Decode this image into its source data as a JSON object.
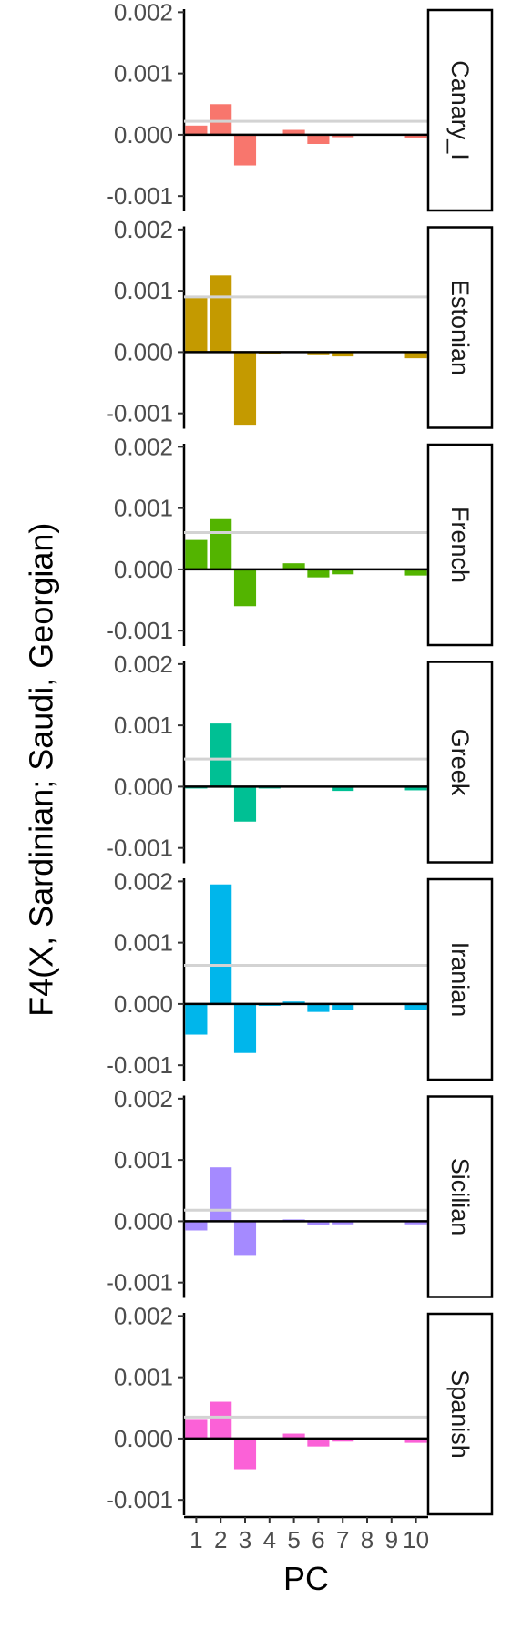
{
  "chart_data": {
    "type": "bar",
    "layout": "faceted, one panel per population, stacked vertically",
    "ylabel": "F4(X, Sardinian; Saudi, Georgian)",
    "xlabel": "PC",
    "x": [
      1,
      2,
      3,
      4,
      5,
      6,
      7,
      8,
      9,
      10
    ],
    "x_tick_labels": [
      "1",
      "2",
      "3",
      "4",
      "5",
      "6",
      "7",
      "8",
      "9",
      "10"
    ],
    "ylim": [
      -0.00125,
      0.00205
    ],
    "y_ticks": [
      -0.001,
      0.0,
      0.001,
      0.002
    ],
    "y_tick_labels": [
      "-0.001",
      "0.000",
      "0.001",
      "0.002"
    ],
    "grid": false,
    "zero_line_color": "#000000",
    "reference_line_color": "#d3d3d3",
    "panels": [
      {
        "name": "Canary_I",
        "color": "#F8766D",
        "reference_line": 0.00022,
        "values": [
          0.00015,
          0.0005,
          -0.0005,
          0.0,
          8e-05,
          -0.00015,
          -4e-05,
          0.0,
          0.0,
          -6e-05
        ]
      },
      {
        "name": "Estonian",
        "color": "#C49A00",
        "reference_line": 0.0009,
        "values": [
          0.0009,
          0.00125,
          -0.0012,
          -3e-05,
          0.0,
          -5e-05,
          -7e-05,
          0.0,
          0.0,
          -0.0001
        ]
      },
      {
        "name": "French",
        "color": "#53B400",
        "reference_line": 0.0006,
        "values": [
          0.00048,
          0.00082,
          -0.0006,
          0.0,
          0.0001,
          -0.00013,
          -8e-05,
          0.0,
          0.0,
          -0.0001
        ]
      },
      {
        "name": "Greek",
        "color": "#00C094",
        "reference_line": 0.00045,
        "values": [
          -3e-05,
          0.00103,
          -0.00057,
          -3e-05,
          0.0,
          0.0,
          -7e-05,
          0.0,
          0.0,
          -6e-05
        ]
      },
      {
        "name": "Iranian",
        "color": "#00B6EB",
        "reference_line": 0.00063,
        "values": [
          -0.0005,
          0.00195,
          -0.0008,
          -3e-05,
          4e-05,
          -0.00013,
          -0.0001,
          0.0,
          0.0,
          -0.0001
        ]
      },
      {
        "name": "Sicilian",
        "color": "#A58AFF",
        "reference_line": 0.00018,
        "values": [
          -0.00015,
          0.00088,
          -0.00055,
          0.0,
          3e-05,
          -6e-05,
          -5e-05,
          0.0,
          0.0,
          -5e-05
        ]
      },
      {
        "name": "Spanish",
        "color": "#FB61D7",
        "reference_line": 0.00035,
        "values": [
          0.00032,
          0.0006,
          -0.0005,
          0.0,
          8e-05,
          -0.00013,
          -5e-05,
          0.0,
          0.0,
          -7e-05
        ]
      }
    ]
  }
}
